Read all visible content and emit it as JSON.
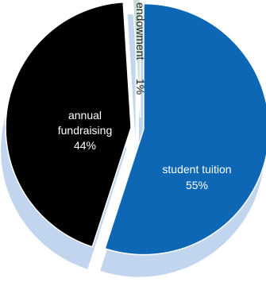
{
  "chart_data": {
    "type": "pie",
    "slices": [
      {
        "label": "student tuition",
        "percent": "55%",
        "value": 55,
        "color": "#0d67b5",
        "text_color": "#ffffff"
      },
      {
        "label": "annual fundraising",
        "label_lines": [
          "annual",
          "fundraising"
        ],
        "percent": "44%",
        "value": 44,
        "color": "#000000",
        "text_color": "#ffffff"
      },
      {
        "label": "endowment",
        "percent": "1%",
        "value": 1,
        "color": "#c5e0d5",
        "text_color": "#1a1a1a"
      }
    ],
    "shadow_color": "#c2d5ee",
    "legend": "none"
  }
}
